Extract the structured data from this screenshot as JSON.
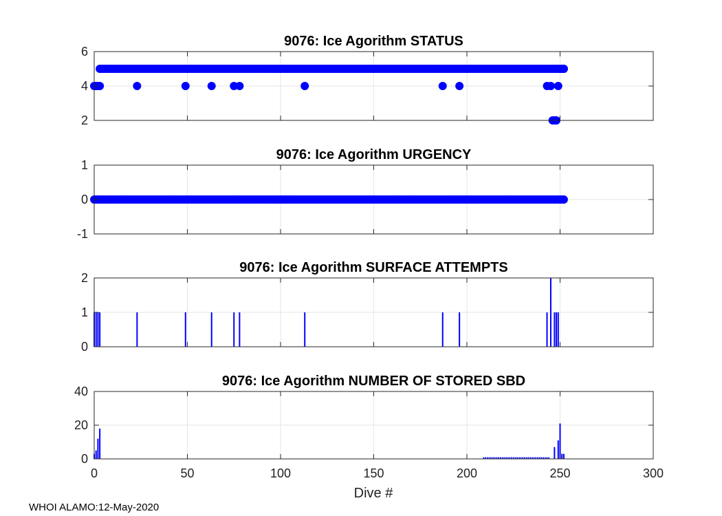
{
  "footer": "WHOI ALAMO:12-May-2020",
  "xlabel": "Dive #",
  "x_ticks": [
    0,
    50,
    100,
    150,
    200,
    250,
    300
  ],
  "colors": {
    "series": "#0000ff",
    "grid": "#e6e6e6",
    "axis": "#262626"
  },
  "chart_data": [
    {
      "type": "scatter",
      "title": "9076: Ice Agorithm STATUS",
      "xlim": [
        0,
        300
      ],
      "ylim": [
        2,
        6
      ],
      "yticks": [
        2,
        4,
        6
      ],
      "fill_y": 5,
      "fill_x_range": [
        3,
        252
      ],
      "points": [
        [
          0,
          4
        ],
        [
          1,
          4
        ],
        [
          2,
          4
        ],
        [
          3,
          4
        ],
        [
          23,
          4
        ],
        [
          49,
          4
        ],
        [
          63,
          4
        ],
        [
          75,
          4
        ],
        [
          78,
          4
        ],
        [
          113,
          4
        ],
        [
          187,
          4
        ],
        [
          196,
          4
        ],
        [
          243,
          4
        ],
        [
          245,
          4
        ],
        [
          246,
          2
        ],
        [
          247,
          2
        ],
        [
          248,
          2
        ],
        [
          249,
          4
        ],
        [
          250,
          5
        ],
        [
          252,
          5
        ]
      ]
    },
    {
      "type": "scatter",
      "title": "9076: Ice Agorithm URGENCY",
      "xlim": [
        0,
        300
      ],
      "ylim": [
        -1,
        1
      ],
      "yticks": [
        -1,
        0,
        1
      ],
      "fill_y": 0,
      "fill_x_range": [
        0,
        252
      ],
      "points": []
    },
    {
      "type": "bar",
      "title": "9076: Ice Agorithm SURFACE ATTEMPTS",
      "xlim": [
        0,
        300
      ],
      "ylim": [
        0,
        2
      ],
      "yticks": [
        0,
        1,
        2
      ],
      "bars": [
        [
          0,
          1
        ],
        [
          1,
          1
        ],
        [
          2,
          1
        ],
        [
          3,
          1
        ],
        [
          23,
          1
        ],
        [
          49,
          1
        ],
        [
          63,
          1
        ],
        [
          75,
          1
        ],
        [
          78,
          1
        ],
        [
          113,
          1
        ],
        [
          187,
          1
        ],
        [
          196,
          1
        ],
        [
          243,
          1
        ],
        [
          245,
          2
        ],
        [
          247,
          1
        ],
        [
          248,
          1
        ],
        [
          249,
          1
        ]
      ]
    },
    {
      "type": "bar",
      "title": "9076: Ice Agorithm NUMBER OF STORED SBD",
      "xlim": [
        0,
        300
      ],
      "ylim": [
        0,
        40
      ],
      "yticks": [
        0,
        20,
        40
      ],
      "bar_fill_range": [
        209,
        244
      ],
      "bar_fill_value": 1,
      "bars": [
        [
          0,
          3
        ],
        [
          1,
          5
        ],
        [
          2,
          12
        ],
        [
          3,
          18
        ],
        [
          247,
          7
        ],
        [
          249,
          11
        ],
        [
          250,
          21
        ],
        [
          251,
          3
        ],
        [
          252,
          3
        ]
      ]
    }
  ]
}
